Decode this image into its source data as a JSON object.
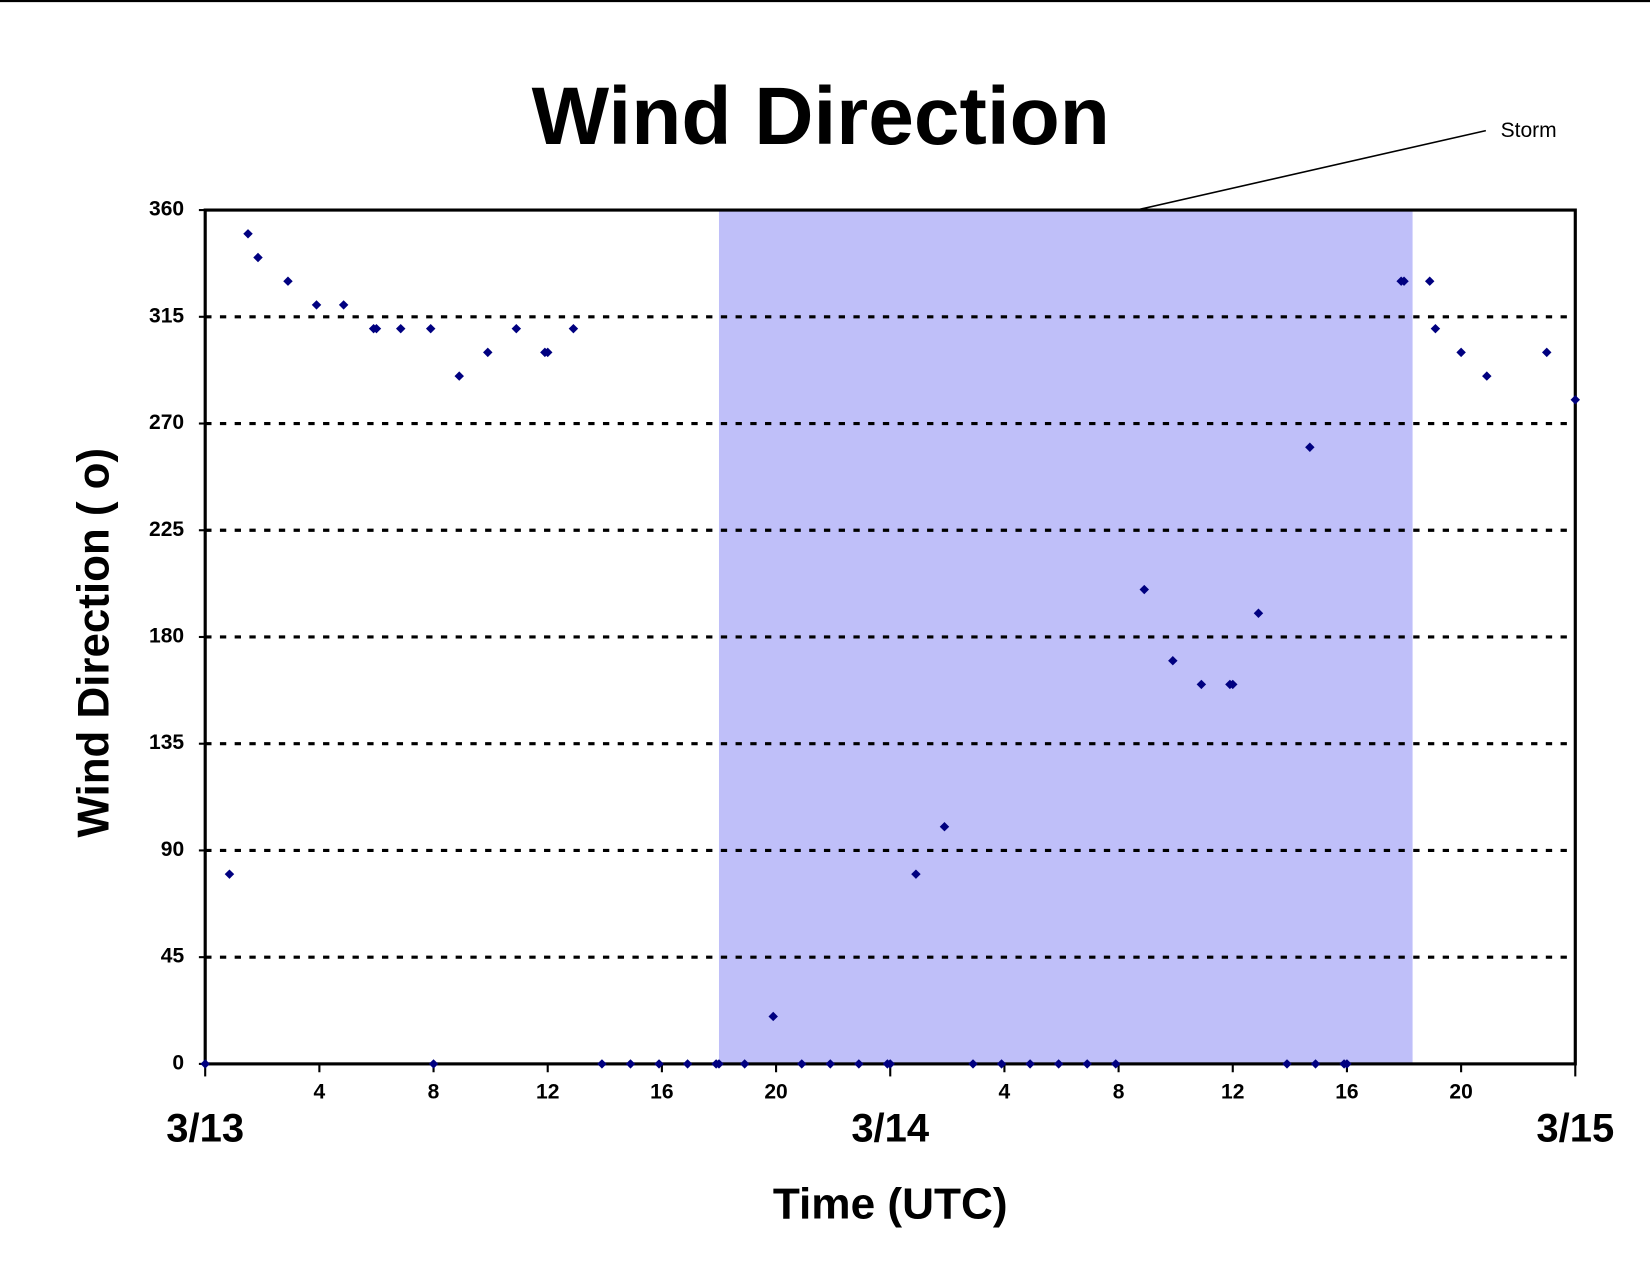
{
  "chart_data": {
    "type": "scatter",
    "title": "Wind Direction",
    "x_label": "Time (UTC)",
    "y_label": "Wind Direction ( o)",
    "storm": {
      "label": "Storm",
      "start": 18,
      "end": 42.3,
      "color": "#bfbff9"
    },
    "color": "#000080",
    "x": [
      0,
      0.85,
      1.5,
      1.85,
      2.9,
      3.9,
      4.85,
      5.9,
      6.0,
      6.85,
      7.9,
      8.0,
      8.9,
      9.9,
      10.9,
      11.9,
      12.0,
      12.9,
      13.9,
      14.9,
      15.9,
      16.9,
      17.9,
      18.0,
      18.9,
      19.9,
      20.9,
      21.9,
      22.9,
      23.9,
      24.0,
      24.9,
      25.9,
      26.9,
      27.9,
      28.9,
      29.9,
      30.9,
      31.9,
      32.9,
      33.9,
      34.9,
      35.9,
      36.0,
      36.9,
      37.9,
      38.7,
      38.9,
      39.9,
      40.0,
      41.9,
      42.0,
      42.9,
      43.1,
      44.0,
      44.9,
      47.0,
      48.0
    ],
    "values": [
      0,
      80,
      350,
      340,
      330,
      320,
      320,
      310,
      310,
      310,
      310,
      0,
      290,
      300,
      310,
      300,
      300,
      310,
      0,
      0,
      0,
      0,
      0,
      0,
      0,
      20,
      0,
      0,
      0,
      0,
      0,
      80,
      100,
      0,
      0,
      0,
      0,
      0,
      0,
      200,
      170,
      160,
      160,
      160,
      190,
      0,
      260,
      0,
      0,
      0,
      330,
      330,
      330,
      310,
      300,
      290,
      300,
      280
    ],
    "xlim": [
      0,
      48
    ],
    "xticks": [
      4,
      8,
      12,
      16,
      20,
      {
        "value": 28,
        "label": "4"
      },
      {
        "value": 32,
        "label": "8"
      },
      {
        "value": 36,
        "label": "12"
      },
      {
        "value": 40,
        "label": "16"
      },
      {
        "value": 44,
        "label": "20"
      }
    ],
    "date_ticks": [
      {
        "value": 0,
        "label": "3/13"
      },
      {
        "value": 24,
        "label": "3/14"
      },
      {
        "value": 48,
        "label": "3/15"
      }
    ],
    "ylim": [
      0,
      360
    ],
    "yticks": [
      0,
      45,
      90,
      135,
      180,
      225,
      270,
      315,
      360
    ],
    "grid": true
  }
}
